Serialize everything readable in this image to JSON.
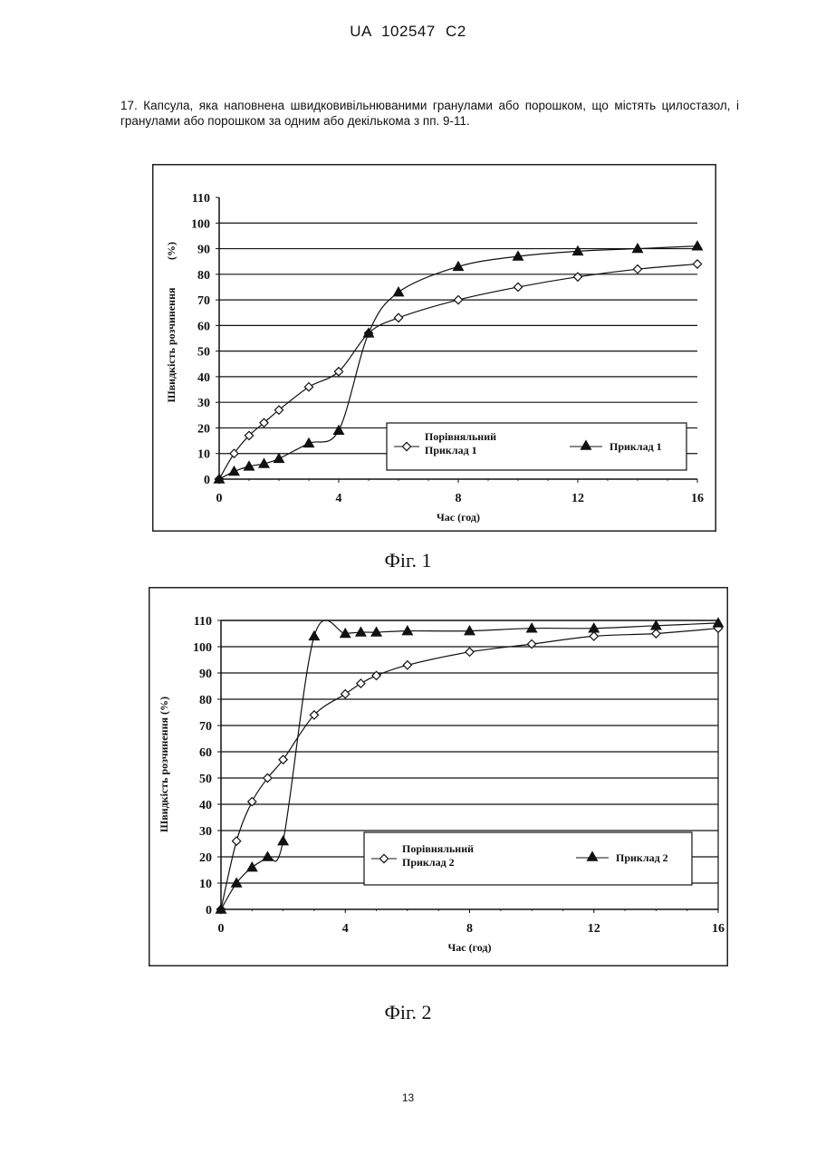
{
  "document": {
    "header": "UA 102547 C2",
    "claim_text": "17. Капсула, яка наповнена швидковивільнюваними гранулами або порошком, що містять цилостазол, і гранулами або порошком за одним або декількома з пп. 9-11.",
    "page_number": "13"
  },
  "chart_data": [
    {
      "type": "line",
      "caption": "Фіг. 1",
      "xlabel": "Час (год)",
      "ylabel": "Швидкість розчинення",
      "ylabel_unit": "(%)",
      "xlim": [
        0,
        16
      ],
      "ylim": [
        0,
        110
      ],
      "x_ticks": [
        "0",
        "4",
        "8",
        "12",
        "16"
      ],
      "y_ticks": [
        "0",
        "10",
        "20",
        "30",
        "40",
        "50",
        "60",
        "70",
        "80",
        "90",
        "100",
        "110"
      ],
      "grid": true,
      "legend_position": "lower-right",
      "series": [
        {
          "name": "Порівняльний Приклад 1",
          "legend_lines": [
            "Порівняльний",
            "Приклад 1"
          ],
          "marker": "open-diamond",
          "x": [
            0,
            0.5,
            1,
            1.5,
            2,
            3,
            4,
            5,
            6,
            8,
            10,
            12,
            14,
            16
          ],
          "y": [
            0,
            10,
            17,
            22,
            27,
            36,
            42,
            57,
            63,
            70,
            75,
            79,
            82,
            84
          ]
        },
        {
          "name": "Приклад 1",
          "legend_lines": [
            "Приклад 1"
          ],
          "marker": "filled-triangle",
          "x": [
            0,
            0.5,
            1,
            1.5,
            2,
            3,
            4,
            5,
            6,
            8,
            10,
            12,
            14,
            16
          ],
          "y": [
            0,
            3,
            5,
            6,
            8,
            14,
            19,
            57,
            73,
            83,
            87,
            89,
            90,
            91
          ]
        }
      ]
    },
    {
      "type": "line",
      "caption": "Фіг. 2",
      "xlabel": "Час (год)",
      "ylabel": "Швидкість розчинення (%)",
      "ylabel_unit": "",
      "xlim": [
        0,
        16
      ],
      "ylim": [
        0,
        110
      ],
      "x_ticks": [
        "0",
        "4",
        "8",
        "12",
        "16"
      ],
      "y_ticks": [
        "0",
        "10",
        "20",
        "30",
        "40",
        "50",
        "60",
        "70",
        "80",
        "90",
        "100",
        "110"
      ],
      "grid": true,
      "legend_position": "lower-right",
      "series": [
        {
          "name": "Порівняльний Приклад 2",
          "legend_lines": [
            "Порівняльний",
            "Приклад 2"
          ],
          "marker": "open-diamond",
          "x": [
            0,
            0.5,
            1,
            1.5,
            2,
            3,
            4,
            4.5,
            5,
            6,
            8,
            10,
            12,
            14,
            16
          ],
          "y": [
            0,
            26,
            41,
            50,
            57,
            74,
            82,
            86,
            89,
            93,
            98,
            101,
            104,
            105,
            107
          ]
        },
        {
          "name": "Приклад 2",
          "legend_lines": [
            "Приклад 2"
          ],
          "marker": "filled-triangle",
          "x": [
            0,
            0.5,
            1,
            1.5,
            2,
            3,
            4,
            4.5,
            5,
            6,
            8,
            10,
            12,
            14,
            16
          ],
          "y": [
            0,
            10,
            16,
            20,
            26,
            104,
            105,
            105.5,
            105.5,
            106,
            106,
            107,
            107,
            108,
            109
          ]
        }
      ]
    }
  ]
}
